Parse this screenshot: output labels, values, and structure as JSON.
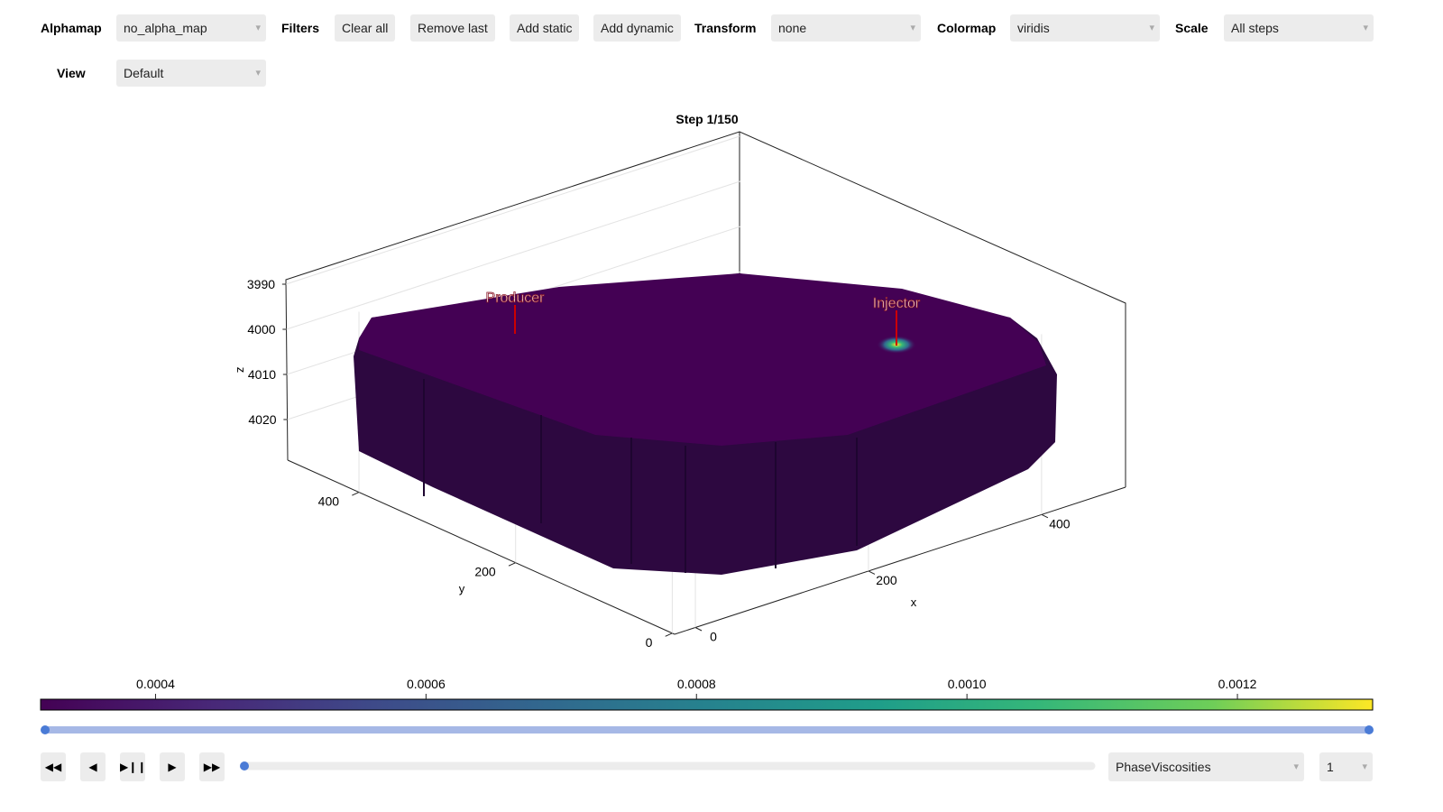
{
  "controls": {
    "alphamap": {
      "label": "Alphamap",
      "value": "no_alpha_map"
    },
    "filters": {
      "label": "Filters",
      "buttons": [
        "Clear all",
        "Remove last",
        "Add static",
        "Add dynamic"
      ]
    },
    "transform": {
      "label": "Transform",
      "value": "none"
    },
    "colormap": {
      "label": "Colormap",
      "value": "viridis"
    },
    "scale": {
      "label": "Scale",
      "value": "All steps"
    },
    "view": {
      "label": "View",
      "value": "Default"
    }
  },
  "plot": {
    "title": "Step 1/150",
    "z_label": "z",
    "zlim": [
      3989,
      4029
    ],
    "z_ticks": [
      3990,
      4000,
      4010,
      4020
    ],
    "y_label": "y",
    "ylim": [
      -3,
      491
    ],
    "y_ticks": [
      0,
      200,
      400
    ],
    "x_label": "x",
    "xlim": [
      -24,
      497
    ],
    "x_ticks": [
      0,
      200,
      400
    ],
    "wells": [
      "Producer",
      "Injector"
    ]
  },
  "colorbar": {
    "lim": [
      0.000315,
      0.0013
    ],
    "ticks": [
      0.0004,
      0.0006,
      0.0008,
      {
        "value": 0.001,
        "label": "0.0010"
      },
      0.0012
    ]
  },
  "playback": {
    "variable": "PhaseViscosities",
    "component": "1"
  }
}
